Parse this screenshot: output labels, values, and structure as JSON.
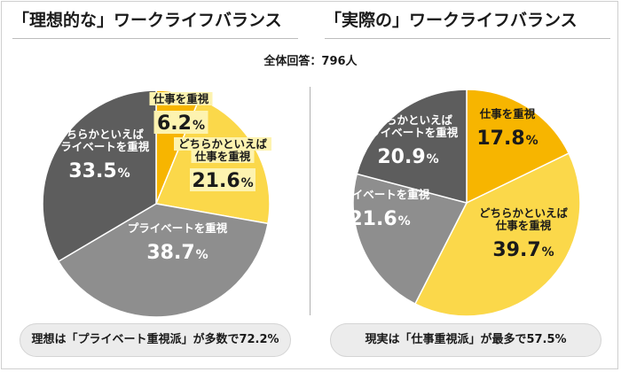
{
  "total_label": "全体回答：796人",
  "colors": {
    "yellow": "#f7b500",
    "light_yellow": "#fbd84a",
    "dark_gray": "#5d5d5d",
    "mid_gray": "#8e8e8e"
  },
  "chart_data": [
    {
      "type": "pie",
      "title": "「理想的な」ワークライフバランス",
      "slices": [
        {
          "label_lines": [
            "仕事を重視"
          ],
          "value": 6.2,
          "display": "6.2",
          "color": "#f7b500",
          "text_color": "#1a1a1a",
          "highlight": true
        },
        {
          "label_lines": [
            "どちらかといえば",
            "仕事を重視"
          ],
          "value": 21.6,
          "display": "21.6",
          "color": "#fbd84a",
          "text_color": "#1a1a1a",
          "highlight": true
        },
        {
          "label_lines": [
            "プライベートを重視"
          ],
          "value": 38.7,
          "display": "38.7",
          "color": "#8e8e8e",
          "text_color": "#ffffff",
          "highlight": false
        },
        {
          "label_lines": [
            "どちらかといえば",
            "プライベートを重視"
          ],
          "value": 33.5,
          "display": "33.5",
          "color": "#5d5d5d",
          "text_color": "#ffffff",
          "highlight": false
        }
      ],
      "summary": "理想は「プライベート重視派」が多数で72.2%"
    },
    {
      "type": "pie",
      "title": "「実際の」ワークライフバランス",
      "slices": [
        {
          "label_lines": [
            "仕事を重視"
          ],
          "value": 17.8,
          "display": "17.8",
          "color": "#f7b500",
          "text_color": "#1a1a1a",
          "highlight": false
        },
        {
          "label_lines": [
            "どちらかといえば",
            "仕事を重視"
          ],
          "value": 39.7,
          "display": "39.7",
          "color": "#fbd84a",
          "text_color": "#1a1a1a",
          "highlight": false
        },
        {
          "label_lines": [
            "プライベートを重視"
          ],
          "value": 21.6,
          "display": "21.6",
          "color": "#8e8e8e",
          "text_color": "#ffffff",
          "highlight": false
        },
        {
          "label_lines": [
            "どちらかといえば",
            "プライベートを重視"
          ],
          "value": 20.9,
          "display": "20.9",
          "color": "#5d5d5d",
          "text_color": "#ffffff",
          "highlight": false
        }
      ],
      "summary": "現実は「仕事重視派」が最多で57.5%"
    }
  ]
}
